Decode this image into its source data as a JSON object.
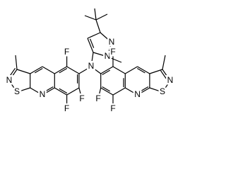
{
  "atoms": {
    "labels": [
      "F",
      "F",
      "F",
      "N",
      "S",
      "N",
      "N",
      "N",
      "N",
      "F",
      "F",
      "F",
      "N",
      "S",
      "N"
    ]
  }
}
